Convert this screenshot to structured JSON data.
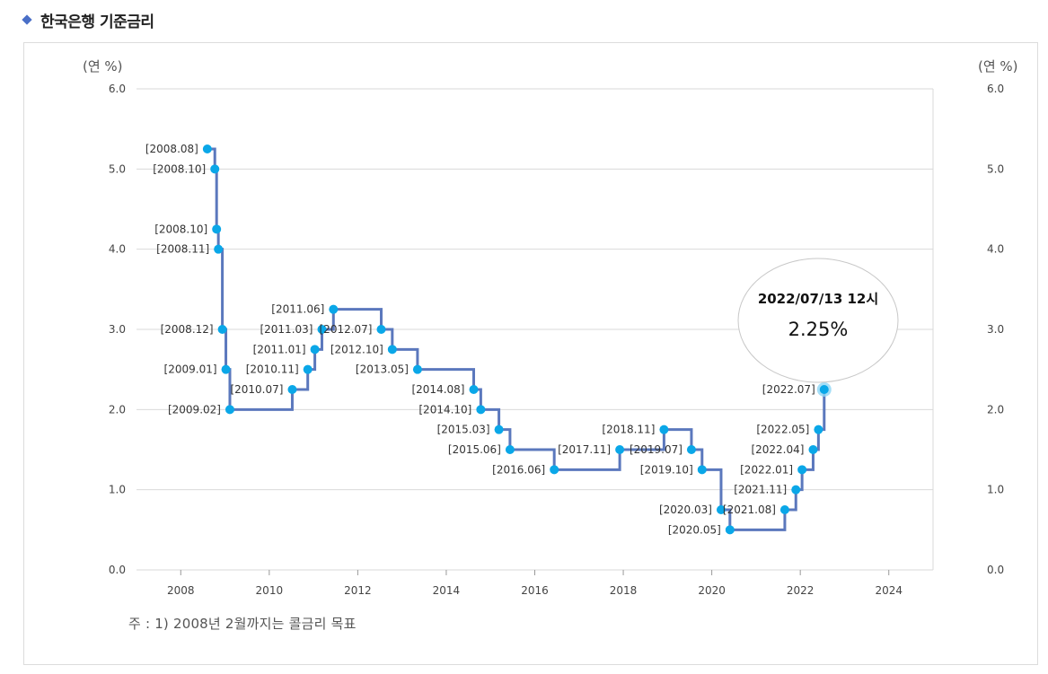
{
  "header": {
    "title": "한국은행 기준금리"
  },
  "note": "주 : 1) 2008년 2월까지는 콜금리 목표",
  "colors": {
    "line": "#5b78bd",
    "point": "#0aa7e8",
    "grid": "#d9d9d9",
    "accent": "#4a6fc7"
  },
  "chart_data": {
    "type": "line",
    "title": "한국은행 기준금리",
    "ylabel_left": "(연 %)",
    "ylabel_right": "(연 %)",
    "xlim": [
      2007,
      2025
    ],
    "ylim": [
      0,
      6
    ],
    "x_ticks": [
      2008,
      2010,
      2012,
      2014,
      2016,
      2018,
      2020,
      2022,
      2024
    ],
    "y_ticks": [
      "0.0",
      "1.0",
      "2.0",
      "3.0",
      "4.0",
      "5.0",
      "6.0"
    ],
    "step": true,
    "points": [
      {
        "label": "[2008.08]",
        "x": 2008.6,
        "y": 5.25
      },
      {
        "label": "[2008.10]",
        "x": 2008.77,
        "y": 5.0
      },
      {
        "label": "[2008.10]",
        "x": 2008.81,
        "y": 4.25
      },
      {
        "label": "[2008.11]",
        "x": 2008.85,
        "y": 4.0
      },
      {
        "label": "[2008.12]",
        "x": 2008.94,
        "y": 3.0
      },
      {
        "label": "[2009.01]",
        "x": 2009.02,
        "y": 2.5
      },
      {
        "label": "[2009.02]",
        "x": 2009.11,
        "y": 2.0
      },
      {
        "label": "[2010.07]",
        "x": 2010.52,
        "y": 2.25
      },
      {
        "label": "[2010.11]",
        "x": 2010.87,
        "y": 2.5
      },
      {
        "label": "[2011.01]",
        "x": 2011.03,
        "y": 2.75
      },
      {
        "label": "[2011.03]",
        "x": 2011.19,
        "y": 3.0
      },
      {
        "label": "[2011.06]",
        "x": 2011.45,
        "y": 3.25
      },
      {
        "label": "[2012.07]",
        "x": 2012.53,
        "y": 3.0
      },
      {
        "label": "[2012.10]",
        "x": 2012.78,
        "y": 2.75
      },
      {
        "label": "[2013.05]",
        "x": 2013.35,
        "y": 2.5
      },
      {
        "label": "[2014.08]",
        "x": 2014.62,
        "y": 2.25
      },
      {
        "label": "[2014.10]",
        "x": 2014.78,
        "y": 2.0
      },
      {
        "label": "[2015.03]",
        "x": 2015.19,
        "y": 1.75
      },
      {
        "label": "[2015.06]",
        "x": 2015.44,
        "y": 1.5
      },
      {
        "label": "[2016.06]",
        "x": 2016.44,
        "y": 1.25
      },
      {
        "label": "[2017.11]",
        "x": 2017.92,
        "y": 1.5
      },
      {
        "label": "[2018.11]",
        "x": 2018.92,
        "y": 1.75
      },
      {
        "label": "[2019.07]",
        "x": 2019.54,
        "y": 1.5
      },
      {
        "label": "[2019.10]",
        "x": 2019.78,
        "y": 1.25
      },
      {
        "label": "[2020.03]",
        "x": 2020.21,
        "y": 0.75
      },
      {
        "label": "[2020.05]",
        "x": 2020.41,
        "y": 0.5
      },
      {
        "label": "[2021.08]",
        "x": 2021.65,
        "y": 0.75
      },
      {
        "label": "[2021.11]",
        "x": 2021.9,
        "y": 1.0
      },
      {
        "label": "[2022.01]",
        "x": 2022.04,
        "y": 1.25
      },
      {
        "label": "[2022.04]",
        "x": 2022.29,
        "y": 1.5
      },
      {
        "label": "[2022.05]",
        "x": 2022.41,
        "y": 1.75
      },
      {
        "label": "[2022.07]",
        "x": 2022.54,
        "y": 2.25
      }
    ],
    "tooltip": {
      "date": "2022/07/13 12시",
      "value": "2.25%"
    }
  }
}
